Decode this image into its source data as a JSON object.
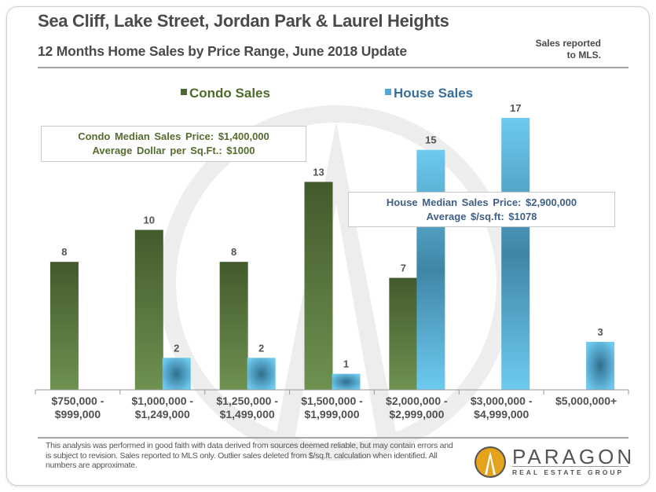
{
  "header": {
    "title": "Sea Cliff, Lake Street, Jordan Park & Laurel Heights",
    "subtitle": "12 Months Home Sales by Price Range, June 2018 Update",
    "note_line1": "Sales reported",
    "note_line2": "to MLS."
  },
  "annotations": {
    "condo_line1": "Condo Median  Sales Price: $1,400,000",
    "condo_line2": "Average  Dollar  per  Sq.Ft.: $1000",
    "house_line1": "House  Median  Sales  Price:  $2,900,000",
    "house_line2": "Average  $/sq.ft:  $1078"
  },
  "footer": {
    "disclaimer": "This analysis was performed in good faith with data derived from sources deemed reliable, but may contain errors and is subject to revision. Sales reported to MLS only. Outlier sales deleted from $/sq.ft. calculation when identified. All numbers are approximate.",
    "logo_name": "PARAGON",
    "logo_tagline": "REAL ESTATE GROUP"
  },
  "colors": {
    "condo_top": "#435a2c",
    "condo_bottom": "#6e9150",
    "house_top": "#6ecaf0",
    "house_mid": "#3f86a6",
    "condo_legend_text": "#4f6a2a",
    "house_legend_text": "#3a6d98",
    "logo_gold": "#e5a21b"
  },
  "chart_data": {
    "type": "bar",
    "title": "12 Months Home Sales by Price Range, June 2018 Update",
    "xlabel": "",
    "ylabel": "",
    "ylim": [
      0,
      18
    ],
    "grid": false,
    "legend_position": "top",
    "categories": [
      [
        "$750,000 -",
        "$999,000"
      ],
      [
        "$1,000,000 -",
        "$1,249,000"
      ],
      [
        "$1,250,000 -",
        "$1,499,000"
      ],
      [
        "$1,500,000 -",
        "$1,999,000"
      ],
      [
        "$2,000,000 -",
        "$2,999,000"
      ],
      [
        "$3,000,000 -",
        "$4,999,000"
      ],
      [
        "$5,000,000+",
        ""
      ]
    ],
    "series": [
      {
        "name": "Condo Sales",
        "values": [
          8,
          10,
          8,
          13,
          7,
          null,
          null
        ]
      },
      {
        "name": "House Sales",
        "values": [
          null,
          2,
          2,
          1,
          15,
          17,
          3
        ]
      }
    ]
  }
}
